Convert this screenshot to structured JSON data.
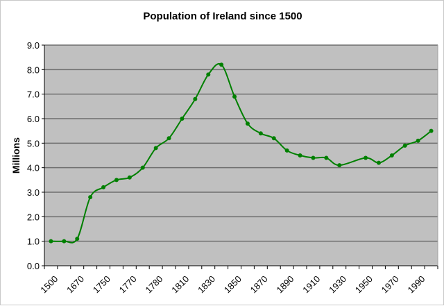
{
  "chart_data": {
    "type": "line",
    "title": "Population of Ireland since 1500",
    "ylabel": "Millions",
    "xlabel": "",
    "ylim": [
      0,
      9
    ],
    "yticks": [
      "0.0",
      "1.0",
      "2.0",
      "3.0",
      "4.0",
      "5.0",
      "6.0",
      "7.0",
      "8.0",
      "9.0"
    ],
    "grid": true,
    "categories": [
      "1500",
      "",
      "1670",
      "",
      "1750",
      "",
      "1770",
      "",
      "1780",
      "",
      "1810",
      "",
      "1830",
      "",
      "1850",
      "",
      "1870",
      "",
      "1890",
      "",
      "1910",
      "",
      "1930",
      "",
      "1950",
      "",
      "1970",
      "",
      "1990",
      ""
    ],
    "series": [
      {
        "values": [
          1.0,
          1.0,
          1.1,
          2.8,
          3.2,
          3.5,
          3.6,
          4.0,
          4.8,
          5.2,
          6.0,
          6.8,
          7.8,
          8.2,
          6.9,
          5.8,
          5.4,
          5.2,
          4.7,
          4.5,
          4.4,
          4.4,
          4.1,
          null,
          4.4,
          4.2,
          4.5,
          4.9,
          5.1,
          5.5
        ]
      }
    ],
    "colors": {
      "line": "#008000",
      "plot_background": "#c0c0c0",
      "gridline": "#6e6e6e"
    }
  }
}
